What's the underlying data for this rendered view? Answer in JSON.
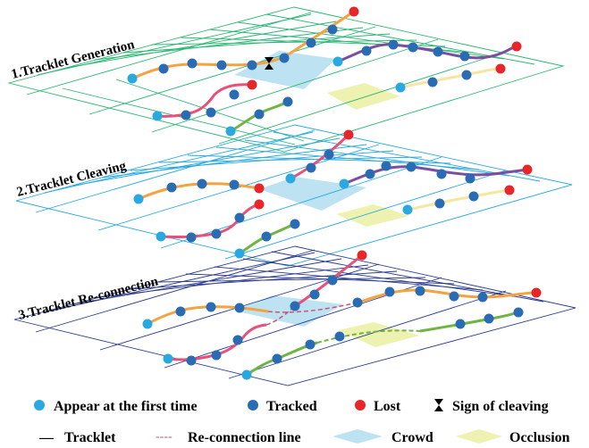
{
  "colors": {
    "grid_top": "#2bb673",
    "grid_mid": "#29a9e0",
    "grid_bottom": "#2b3a8f",
    "appear": "#29a9e0",
    "tracked": "#2a6cb3",
    "lost": "#e8262a",
    "orange": "#f4a340",
    "pink": "#e8507a",
    "purple": "#7b4fa0",
    "green": "#70b544",
    "yellow": "#f5e6a0",
    "crowd": "#bde3f2",
    "occlusion": "#eef2b0",
    "reconnect": "#c9557a"
  },
  "panels": [
    {
      "label": "1.Tracklet Generation"
    },
    {
      "label": "2.Tracklet Cleaving"
    },
    {
      "label": "3.Tracklet Re-connection"
    }
  ],
  "legend": {
    "appear": "Appear at the first time",
    "tracked": "Tracked",
    "lost": "Lost",
    "cleave": "Sign of cleaving",
    "tracklet_dash": "—",
    "tracklet": "Tracklet",
    "reconnect_dash": "----",
    "reconnect": "Re-connection line",
    "crowd": "Crowd",
    "occlusion": "Occlusion"
  }
}
